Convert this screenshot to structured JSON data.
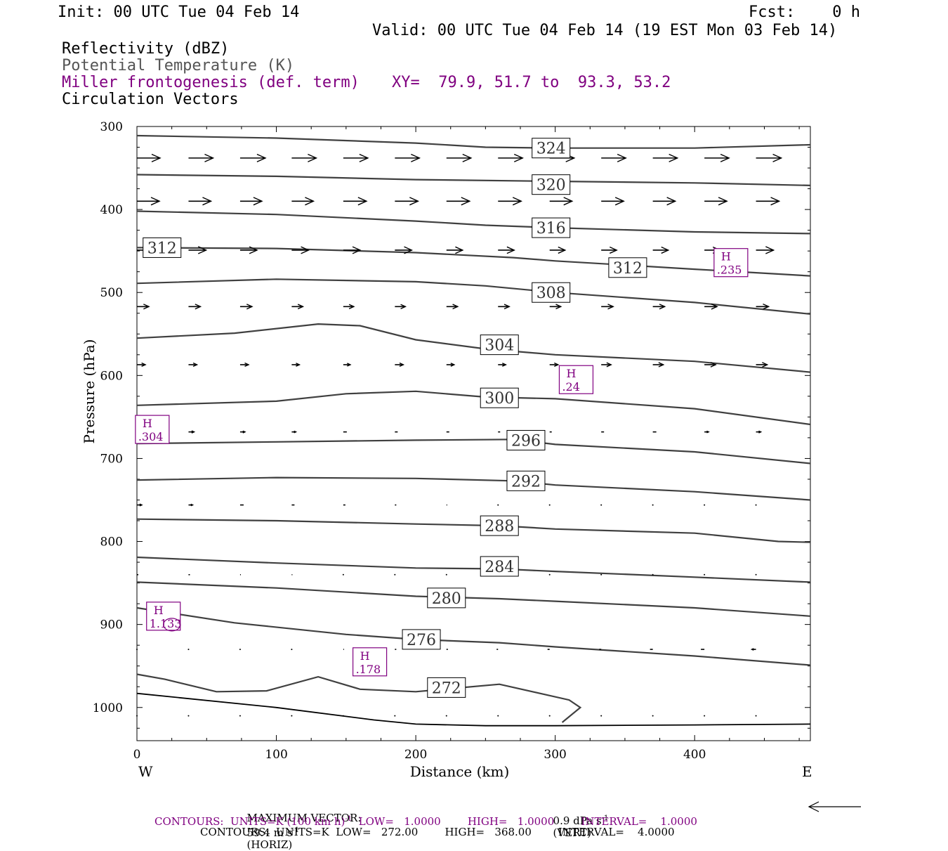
{
  "header": {
    "init": "Init: 00 UTC Tue 04 Feb 14",
    "fcst": "Fcst:    0 h",
    "valid": "Valid: 00 UTC Tue 04 Feb 14 (19 EST Mon 03 Feb 14)",
    "fields": [
      {
        "text": "Reflectivity (dBZ)",
        "color": "#000000"
      },
      {
        "text": "Potential Temperature (K)",
        "color": "#555555"
      },
      {
        "text": "Miller frontogenesis (def. term)",
        "color": "#800080"
      },
      {
        "text": "Circulation Vectors",
        "color": "#000000"
      }
    ],
    "xy": "XY=  79.9, 51.7 to  93.3, 53.2"
  },
  "footer": {
    "max_vector_label": "MAXIMUM VECTOR:",
    "max_vector_horiz": "59.4 m s",
    "horiz_unit_exp": "-1",
    "horiz_tag": "(HORIZ)",
    "max_vector_vert": "0.9 dPa s",
    "vert_unit_exp": "-1",
    "vert_tag": "(VERT)",
    "contours_purple_a": "CONTOURS:  UNITS=K (100 km h)",
    "contours_purple_exp": "-1",
    "contours_purple_b": "  LOW=   1.0000        HIGH=   1.0000        INTERVAL=    1.0000",
    "contours_black": "CONTOURS:  UNITS=K  LOW=   272.00        HIGH=   368.00        INTERVAL=    4.0000"
  },
  "chart_data": {
    "type": "line",
    "xlabel": "Distance (km)",
    "ylabel": "Pressure (hPa)",
    "xlim": [
      0,
      483
    ],
    "ylim": [
      300,
      1040
    ],
    "x_ticks": [
      0,
      100,
      200,
      300,
      400
    ],
    "y_ticks": [
      300,
      400,
      500,
      600,
      700,
      800,
      900,
      1000
    ],
    "x_end_labels": {
      "left": "W",
      "right": "E"
    },
    "colors": {
      "contour": "#404040",
      "vector": "#000000",
      "frontogenesis": "#800080"
    },
    "isentropes": [
      {
        "theta": 324,
        "points": [
          [
            0,
            311
          ],
          [
            100,
            314
          ],
          [
            200,
            320
          ],
          [
            250,
            325
          ],
          [
            300,
            326
          ],
          [
            400,
            326
          ],
          [
            483,
            322
          ]
        ],
        "label_at": [
          297,
          326
        ]
      },
      {
        "theta": 320,
        "points": [
          [
            0,
            358
          ],
          [
            100,
            360
          ],
          [
            200,
            364
          ],
          [
            300,
            366
          ],
          [
            400,
            368
          ],
          [
            483,
            371
          ]
        ],
        "label_at": [
          297,
          370
        ]
      },
      {
        "theta": 316,
        "points": [
          [
            0,
            402
          ],
          [
            100,
            406
          ],
          [
            200,
            414
          ],
          [
            250,
            419
          ],
          [
            300,
            422
          ],
          [
            400,
            427
          ],
          [
            483,
            429
          ]
        ],
        "label_at": [
          297,
          422
        ]
      },
      {
        "theta": 312,
        "points": [
          [
            0,
            446
          ],
          [
            100,
            447
          ],
          [
            200,
            452
          ],
          [
            270,
            458
          ],
          [
            300,
            462
          ],
          [
            400,
            472
          ],
          [
            483,
            480
          ]
        ],
        "label_at": [
          18,
          446
        ],
        "label_at_2": [
          352,
          470
        ]
      },
      {
        "theta": 308,
        "points": [
          [
            0,
            489
          ],
          [
            100,
            484
          ],
          [
            200,
            487
          ],
          [
            250,
            492
          ],
          [
            300,
            500
          ],
          [
            400,
            512
          ],
          [
            483,
            526
          ]
        ],
        "label_at": [
          297,
          500
        ]
      },
      {
        "theta": 304,
        "points": [
          [
            0,
            555
          ],
          [
            70,
            549
          ],
          [
            130,
            538
          ],
          [
            160,
            540
          ],
          [
            200,
            557
          ],
          [
            250,
            568
          ],
          [
            300,
            575
          ],
          [
            400,
            583
          ],
          [
            483,
            596
          ]
        ],
        "label_at": [
          260,
          563
        ]
      },
      {
        "theta": 300,
        "points": [
          [
            0,
            636
          ],
          [
            100,
            631
          ],
          [
            150,
            622
          ],
          [
            200,
            619
          ],
          [
            250,
            626
          ],
          [
            300,
            628
          ],
          [
            400,
            640
          ],
          [
            483,
            659
          ]
        ],
        "label_at": [
          260,
          627
        ]
      },
      {
        "theta": 296,
        "points": [
          [
            0,
            682
          ],
          [
            100,
            680
          ],
          [
            200,
            678
          ],
          [
            270,
            677
          ],
          [
            300,
            683
          ],
          [
            400,
            692
          ],
          [
            483,
            706
          ]
        ],
        "label_at": [
          279,
          678
        ]
      },
      {
        "theta": 292,
        "points": [
          [
            0,
            726
          ],
          [
            100,
            723
          ],
          [
            200,
            724
          ],
          [
            270,
            727
          ],
          [
            300,
            732
          ],
          [
            400,
            740
          ],
          [
            483,
            750
          ]
        ],
        "label_at": [
          279,
          727
        ]
      },
      {
        "theta": 288,
        "points": [
          [
            0,
            773
          ],
          [
            100,
            775
          ],
          [
            200,
            779
          ],
          [
            260,
            781
          ],
          [
            300,
            785
          ],
          [
            400,
            790
          ],
          [
            460,
            800
          ],
          [
            483,
            801
          ]
        ],
        "label_at": [
          260,
          781
        ]
      },
      {
        "theta": 284,
        "points": [
          [
            0,
            819
          ],
          [
            100,
            826
          ],
          [
            200,
            832
          ],
          [
            260,
            833
          ],
          [
            300,
            836
          ],
          [
            400,
            843
          ],
          [
            483,
            849
          ]
        ],
        "label_at": [
          260,
          830
        ]
      },
      {
        "theta": 280,
        "points": [
          [
            0,
            849
          ],
          [
            100,
            856
          ],
          [
            200,
            866
          ],
          [
            260,
            869
          ],
          [
            300,
            872
          ],
          [
            400,
            880
          ],
          [
            483,
            890
          ]
        ],
        "label_at": [
          222,
          868
        ]
      },
      {
        "theta": 276,
        "points": [
          [
            0,
            880
          ],
          [
            70,
            898
          ],
          [
            150,
            912
          ],
          [
            200,
            918
          ],
          [
            260,
            922
          ],
          [
            300,
            927
          ],
          [
            400,
            938
          ],
          [
            483,
            949
          ]
        ],
        "label_at": [
          204,
          918
        ]
      },
      {
        "theta": 272,
        "points": [
          [
            0,
            960
          ],
          [
            20,
            966
          ],
          [
            57,
            981
          ],
          [
            93,
            980
          ],
          [
            130,
            963
          ],
          [
            160,
            978
          ],
          [
            200,
            981
          ],
          [
            260,
            972
          ],
          [
            310,
            991
          ],
          [
            318,
            1000
          ],
          [
            305,
            1018
          ]
        ],
        "label_at": [
          222,
          976
        ]
      }
    ],
    "surface": {
      "points": [
        [
          0,
          983
        ],
        [
          100,
          1000
        ],
        [
          170,
          1015
        ],
        [
          200,
          1020
        ],
        [
          250,
          1022
        ],
        [
          300,
          1022
        ],
        [
          400,
          1021
        ],
        [
          483,
          1020
        ]
      ]
    },
    "frontogenesis_maxima": [
      {
        "label": "H",
        "value": ".235",
        "x": 425,
        "p": 464
      },
      {
        "label": "H",
        "value": ".24",
        "x": 314,
        "p": 605
      },
      {
        "label": "H",
        "value": ".304",
        "x": 10,
        "p": 665
      },
      {
        "label": "H",
        "value": "1.133",
        "x": 18,
        "p": 890
      },
      {
        "label": "H",
        "value": ".178",
        "x": 166,
        "p": 945
      }
    ],
    "vector_rows": [
      {
        "p": 338,
        "x0": 0,
        "dx": 37,
        "n": 13,
        "len": [
          33,
          35,
          36,
          35,
          35,
          35,
          35,
          35,
          35,
          35,
          35,
          35,
          36
        ]
      },
      {
        "p": 390,
        "x0": 0,
        "dx": 37,
        "n": 13,
        "len": [
          32,
          32,
          31,
          31,
          33,
          33,
          33,
          33,
          32,
          32,
          32,
          32,
          33
        ]
      },
      {
        "p": 449,
        "x0": 0,
        "dx": 37,
        "n": 13,
        "len": [
          26,
          25,
          24,
          24,
          24,
          24,
          23,
          23,
          22,
          22,
          22,
          22,
          25
        ]
      },
      {
        "p": 517,
        "x0": 0,
        "dx": 37,
        "n": 13,
        "len": [
          17,
          17,
          17,
          16,
          15,
          15,
          16,
          16,
          16,
          17,
          17,
          18,
          18
        ]
      },
      {
        "p": 587,
        "x0": 0,
        "dx": 37,
        "n": 13,
        "len": [
          12,
          12,
          12,
          11,
          10,
          12,
          11,
          11,
          12,
          14,
          15,
          16,
          16
        ]
      },
      {
        "p": 668,
        "x0": 0,
        "dx": 37,
        "n": 13,
        "len": [
          9,
          8,
          7,
          6,
          5,
          4,
          4,
          3,
          3,
          4,
          5,
          6,
          7
        ]
      },
      {
        "p": 756,
        "x0": 0,
        "dx": 37,
        "n": 13,
        "len": [
          7,
          6,
          5,
          4,
          3,
          2,
          1,
          0,
          0,
          0,
          0,
          0,
          0
        ]
      },
      {
        "p": 840,
        "x0": 0,
        "dx": 37,
        "n": 13,
        "len": [
          2,
          2,
          1,
          1,
          0,
          0,
          0,
          0,
          0,
          0,
          0,
          0,
          0
        ]
      },
      {
        "p": 930,
        "x0": 0,
        "dx": 37,
        "n": 13,
        "len": [
          0,
          0,
          0,
          0,
          1,
          2,
          2,
          -2,
          -3,
          -3,
          -4,
          -5,
          -6
        ]
      },
      {
        "p": 1010,
        "x0": 0,
        "dx": 37,
        "n": 13,
        "len": [
          0,
          0,
          0,
          0,
          0,
          0,
          0,
          0,
          0,
          0,
          0,
          0,
          0
        ]
      }
    ]
  }
}
